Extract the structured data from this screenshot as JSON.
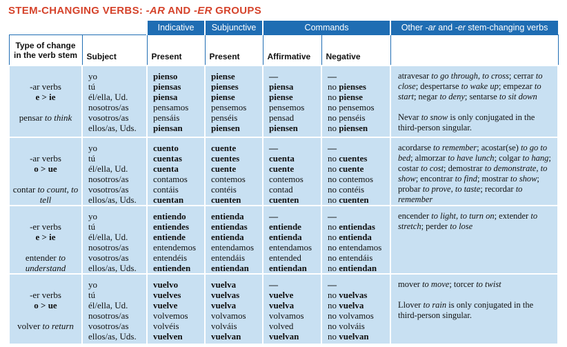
{
  "title": [
    "STEM-CHANGING VERBS: ",
    "-AR",
    " AND ",
    "-ER",
    " GROUPS"
  ],
  "header": {
    "indicative": "Indicative",
    "subjunctive": "Subjunctive",
    "commands": "Commands",
    "other": [
      "Other ",
      "-ar",
      " and ",
      "-er",
      " stem-changing verbs"
    ],
    "type_of_change": [
      "Type of change",
      "in the verb stem"
    ],
    "subject": "Subject",
    "indicative_tense": "Present",
    "subjunctive_tense": "Present",
    "affirmative": "Affirmative",
    "negative": "Negative"
  },
  "rows": [
    {
      "verb_class": "-ar verbs",
      "change": "e > ie",
      "example": [
        "pensar ",
        "to think"
      ],
      "subjects": [
        "yo",
        "tú",
        "él/ella, Ud.",
        "nosotros/as",
        "vosotros/as",
        "ellos/as, Uds."
      ],
      "indicative": [
        "pienso",
        "piensas",
        "piensa",
        "pensamos",
        "pensáis",
        "piensan"
      ],
      "subjunctive": [
        "piense",
        "pienses",
        "piense",
        "pensemos",
        "penséis",
        "piensen"
      ],
      "affirmative": [
        "—",
        "piensa",
        "piense",
        "pensemos",
        "pensad",
        "piensen"
      ],
      "negative": [
        "—",
        "no pienses",
        "no piense",
        "no pensemos",
        "no penséis",
        "no piensen"
      ],
      "other": [
        [
          "atravesar ",
          "to go through, to cross",
          "; cerrar ",
          "to close",
          "; despertarse ",
          "to wake up",
          "; empezar ",
          "to start",
          "; negar ",
          "to deny",
          "; sentarse ",
          "to sit down"
        ],
        [
          "Nevar ",
          "to snow",
          " is only conjugated in the third-person singular."
        ]
      ]
    },
    {
      "verb_class": "-ar verbs",
      "change": "o > ue",
      "example": [
        "contar ",
        "to count, to tell"
      ],
      "subjects": [
        "yo",
        "tú",
        "él/ella, Ud.",
        "nosotros/as",
        "vosotros/as",
        "ellos/as, Uds."
      ],
      "indicative": [
        "cuento",
        "cuentas",
        "cuenta",
        "contamos",
        "contáis",
        "cuentan"
      ],
      "subjunctive": [
        "cuente",
        "cuentes",
        "cuente",
        "contemos",
        "contéis",
        "cuenten"
      ],
      "affirmative": [
        "—",
        "cuenta",
        "cuente",
        "contemos",
        "contad",
        "cuenten"
      ],
      "negative": [
        "—",
        "no cuentes",
        "no cuente",
        "no contemos",
        "no contéis",
        "no cuenten"
      ],
      "other": [
        [
          "acordarse ",
          "to remember",
          "; acostar(se) ",
          "to go to bed",
          "; almorzar ",
          "to have lunch",
          "; colgar ",
          "to hang",
          "; costar ",
          "to cost",
          "; demostrar ",
          "to demonstrate, to show",
          "; encontrar ",
          "to find",
          "; mostrar ",
          "to show",
          "; probar ",
          "to prove, to taste",
          "; recordar ",
          "to remember"
        ]
      ]
    },
    {
      "verb_class": "-er verbs",
      "change": "e > ie",
      "example": [
        "entender ",
        "to understand"
      ],
      "subjects": [
        "yo",
        "tú",
        "él/ella, Ud.",
        "nosotros/as",
        "vosotros/as",
        "ellos/as, Uds."
      ],
      "indicative": [
        "entiendo",
        "entiendes",
        "entiende",
        "entendemos",
        "entendéis",
        "entienden"
      ],
      "subjunctive": [
        "entienda",
        "entiendas",
        "entienda",
        "entendamos",
        "entendáis",
        "entiendan"
      ],
      "affirmative": [
        "—",
        "entiende",
        "entienda",
        "entendamos",
        "entended",
        "entiendan"
      ],
      "negative": [
        "—",
        "no entiendas",
        "no entienda",
        "no entendamos",
        "no entendáis",
        "no entiendan"
      ],
      "other": [
        [
          "encender ",
          "to light, to turn on",
          "; extender ",
          "to stretch",
          "; perder ",
          "to lose"
        ]
      ]
    },
    {
      "verb_class": "-er verbs",
      "change": "o > ue",
      "example": [
        "volver ",
        "to return"
      ],
      "subjects": [
        "yo",
        "tú",
        "él/ella, Ud.",
        "nosotros/as",
        "vosotros/as",
        "ellos/as, Uds."
      ],
      "indicative": [
        "vuelvo",
        "vuelves",
        "vuelve",
        "volvemos",
        "volvéis",
        "vuelven"
      ],
      "subjunctive": [
        "vuelva",
        "vuelvas",
        "vuelva",
        "volvamos",
        "volváis",
        "vuelvan"
      ],
      "affirmative": [
        "—",
        "vuelve",
        "vuelva",
        "volvamos",
        "volved",
        "vuelvan"
      ],
      "negative": [
        "—",
        "no vuelvas",
        "no vuelva",
        "no volvamos",
        "no volváis",
        "no vuelvan"
      ],
      "other": [
        [
          "mover ",
          "to move",
          "; torcer ",
          "to twist"
        ],
        [
          "Llover ",
          "to rain",
          " is only conjugated in the third-person singular."
        ]
      ]
    }
  ]
}
